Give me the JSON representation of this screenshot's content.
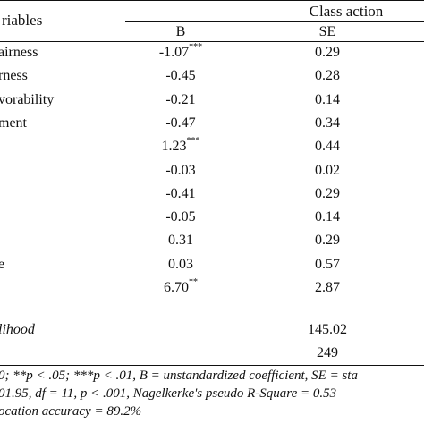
{
  "header": {
    "variables_label": "riables",
    "group_label": "Class action",
    "col_b": "B",
    "col_se": "SE"
  },
  "rows": [
    {
      "label": "airness",
      "b": "-1.07",
      "sig": "***",
      "se": "0.29"
    },
    {
      "label": "rness",
      "b": "-0.45",
      "sig": "",
      "se": "0.28"
    },
    {
      "label": "vorability",
      "b": "-0.21",
      "sig": "",
      "se": "0.14"
    },
    {
      "label": "ment",
      "b": "-0.47",
      "sig": "",
      "se": "0.34"
    },
    {
      "label": "",
      "b": "1.23",
      "sig": "***",
      "se": "0.44"
    },
    {
      "label": "",
      "b": "-0.03",
      "sig": "",
      "se": "0.02"
    },
    {
      "label": "",
      "b": "-0.41",
      "sig": "",
      "se": "0.29"
    },
    {
      "label": "",
      "b": "-0.05",
      "sig": "",
      "se": "0.14"
    },
    {
      "label": "",
      "b": "0.31",
      "sig": "",
      "se": "0.29"
    },
    {
      "label": "e",
      "b": "0.03",
      "sig": "",
      "se": "0.57"
    },
    {
      "label": "",
      "b": "6.70",
      "sig": "**",
      "se": "2.87"
    }
  ],
  "summary": {
    "likelihood_label": "lihood",
    "likelihood_value": "145.02",
    "n_value": "249"
  },
  "footnotes": [
    "0; **p < .05; ***p < .01, B = unstandardized coefficient, SE = sta",
    "01.95, df = 11, p < .001, Nagelkerke's pseudo R-Square = 0.53",
    "ocation accuracy = 89.2%"
  ]
}
